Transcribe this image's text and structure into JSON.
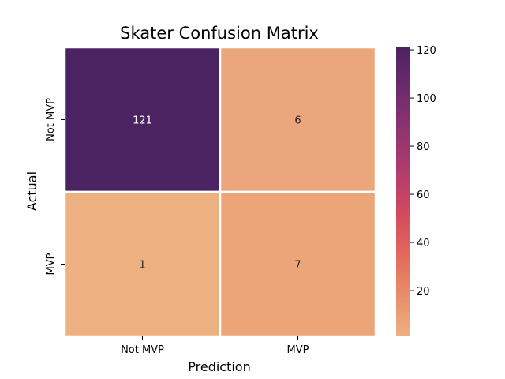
{
  "chart_data": {
    "type": "heatmap",
    "title": "Skater Confusion Matrix",
    "xlabel": "Prediction",
    "ylabel": "Actual",
    "x_categories": [
      "Not MVP",
      "MVP"
    ],
    "y_categories": [
      "Not MVP",
      "MVP"
    ],
    "values": [
      [
        121,
        6
      ],
      [
        1,
        7
      ]
    ],
    "colorbar": {
      "min": 1,
      "max": 121,
      "ticks": [
        "20",
        "40",
        "60",
        "80",
        "100",
        "120"
      ],
      "colormap": "flare",
      "stops": [
        "#edb081",
        "#e98d6b",
        "#e3685c",
        "#d14a61",
        "#b13c6c",
        "#8f3371",
        "#6c2b6d",
        "#4b2362"
      ]
    }
  }
}
